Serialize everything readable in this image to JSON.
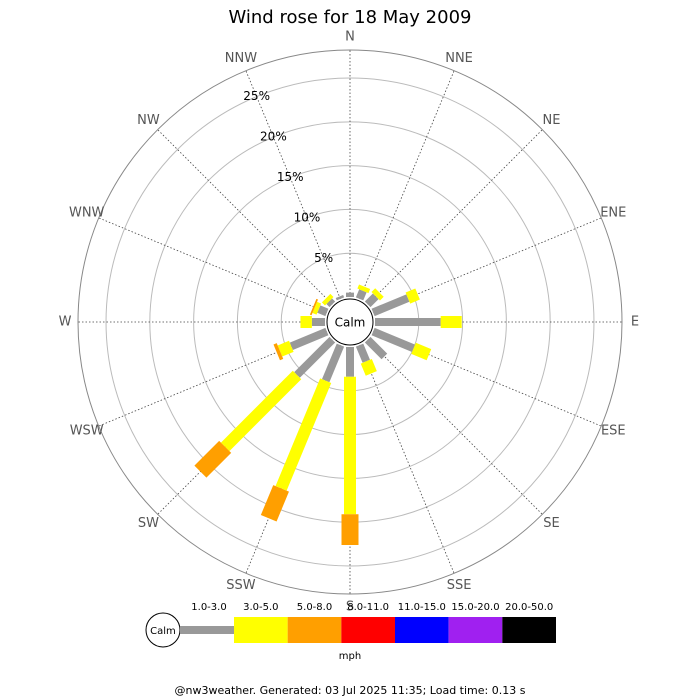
{
  "chart_data": {
    "type": "windrose",
    "title": "Wind rose for 18 May 2009",
    "categories": [
      "N",
      "NNE",
      "NE",
      "ENE",
      "E",
      "ESE",
      "SE",
      "SSE",
      "S",
      "SSW",
      "SW",
      "WSW",
      "W",
      "WNW",
      "NW",
      "NNW"
    ],
    "series": [
      {
        "name": "1.0-3.0",
        "color": "#999999",
        "values": [
          0.5,
          1.0,
          1.3,
          4.3,
          7.5,
          5.0,
          2.7,
          2.0,
          3.4,
          4.4,
          5.7,
          4.4,
          1.5,
          1.0,
          0.5,
          0.3
        ]
      },
      {
        "name": "3.0-5.0",
        "color": "#ffff00",
        "values": [
          0,
          0.5,
          0.6,
          1.2,
          2.4,
          1.9,
          0,
          1.5,
          15.7,
          13.3,
          11.6,
          1.4,
          1.3,
          0.5,
          0.5,
          0
        ]
      },
      {
        "name": "5.0-8.0",
        "color": "#ff9f00",
        "values": [
          0,
          0,
          0,
          0,
          0,
          0,
          0,
          0,
          3.5,
          3.7,
          4.0,
          0.4,
          0,
          0.2,
          0,
          0
        ]
      },
      {
        "name": "8.0-11.0",
        "color": "#ff0000",
        "values": [
          0,
          0,
          0,
          0,
          0,
          0,
          0,
          0,
          0,
          0,
          0,
          0,
          0,
          0,
          0,
          0
        ]
      },
      {
        "name": "11.0-15.0",
        "color": "#0000ff",
        "values": [
          0,
          0,
          0,
          0,
          0,
          0,
          0,
          0,
          0,
          0,
          0,
          0,
          0,
          0,
          0,
          0
        ]
      },
      {
        "name": "15.0-20.0",
        "color": "#a020f0",
        "values": [
          0,
          0,
          0,
          0,
          0,
          0,
          0,
          0,
          0,
          0,
          0,
          0,
          0,
          0,
          0,
          0
        ]
      },
      {
        "name": "20.0-50.0",
        "color": "#000000",
        "values": [
          0,
          0,
          0,
          0,
          0,
          0,
          0,
          0,
          0,
          0,
          0,
          0,
          0,
          0,
          0,
          0
        ]
      }
    ],
    "rlim": [
      0,
      28.2
    ],
    "rticks": [
      {
        "value": 5,
        "label": "5%"
      },
      {
        "value": 10,
        "label": "10%"
      },
      {
        "value": 15,
        "label": "15%"
      },
      {
        "value": 20,
        "label": "20%"
      },
      {
        "value": 25,
        "label": "25%"
      }
    ],
    "center_label": "Calm",
    "unit_label": "mph"
  },
  "footer": "@nw3weather.  Generated: 03 Jul 2025 11:35; Load time: 0.13 s"
}
